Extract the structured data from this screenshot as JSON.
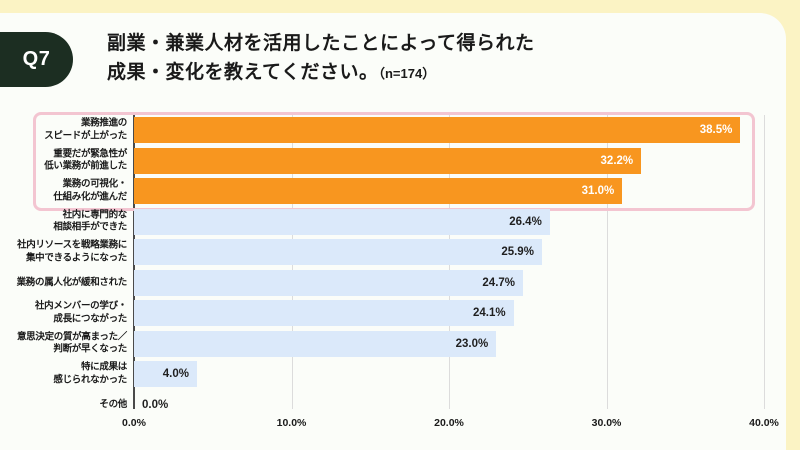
{
  "page": {
    "question_badge": "Q7",
    "title_line1": "副業・兼業人材を活用したことによって得られた",
    "title_line2": "成果・変化を教えてください。",
    "title_note": "（n=174）"
  },
  "chart_data": {
    "type": "bar",
    "orientation": "horizontal",
    "title": "副業・兼業人材を活用したことによって得られた成果・変化を教えてください。",
    "sample_note": "n=174",
    "categories_lines": [
      [
        "業務推進の",
        "スピードが上がった"
      ],
      [
        "重要だが緊急性が",
        "低い業務が前進した"
      ],
      [
        "業務の可視化・",
        "仕組み化が進んだ"
      ],
      [
        "社内に専門的な",
        "相談相手ができた"
      ],
      [
        "社内リソースを戦略業務に",
        "集中できるようになった"
      ],
      [
        "業務の属人化が緩和された"
      ],
      [
        "社内メンバーの学び・",
        "成長につながった"
      ],
      [
        "意思決定の質が高まった／",
        "判断が早くなった"
      ],
      [
        "特に成果は",
        "感じられなかった"
      ],
      [
        "その他"
      ]
    ],
    "values": [
      38.5,
      32.2,
      31.0,
      26.4,
      25.9,
      24.7,
      24.1,
      23.0,
      4.0,
      0.0
    ],
    "value_labels": [
      "38.5%",
      "32.2%",
      "31.0%",
      "26.4%",
      "25.9%",
      "24.7%",
      "24.1%",
      "23.0%",
      "4.0%",
      "0.0%"
    ],
    "highlight_count": 3,
    "xlim": [
      0,
      40
    ],
    "x_ticks": [
      {
        "value": 0,
        "label": "0.0%"
      },
      {
        "value": 10,
        "label": "10.0%"
      },
      {
        "value": 20,
        "label": "20.0%"
      },
      {
        "value": 30,
        "label": "30.0%"
      },
      {
        "value": 40,
        "label": "40.0%"
      }
    ],
    "grid": true,
    "legend": false,
    "colors": {
      "bar_highlight": "#F8961F",
      "bar_default": "#DBE9FA",
      "value_text_on_highlight": "#FFFFFF",
      "value_text_on_default": "#1F1F1F",
      "highlight_box_border": "#F3C5D1",
      "page_background": "#FBF3C4",
      "card_background": "#FBFDF9",
      "badge_background": "#1C2E22",
      "badge_text": "#FFFFFF",
      "axis_line": "#4A4A4A",
      "gridline": "#DCDCDC",
      "text": "#1A1A1A"
    }
  }
}
